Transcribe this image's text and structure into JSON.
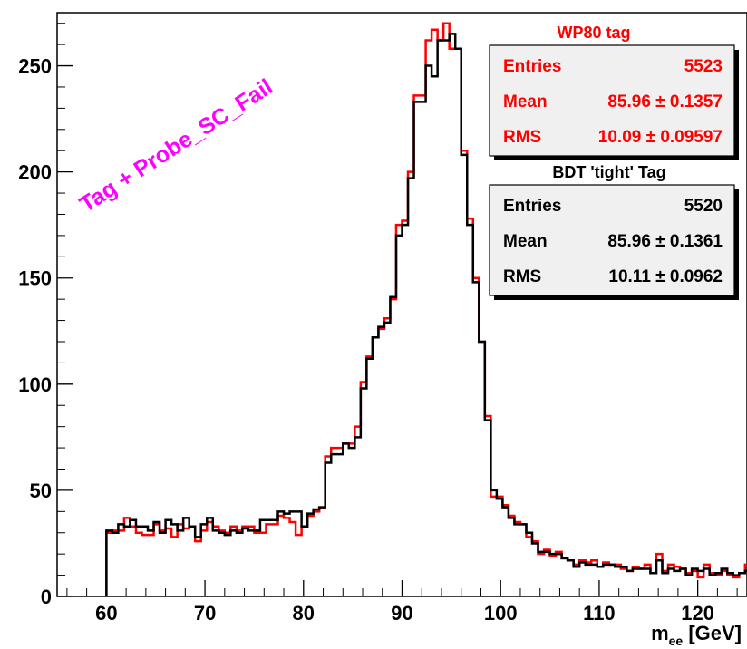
{
  "chart_data": {
    "type": "histogram",
    "xlabel_main": "m",
    "xlabel_sub": "ee",
    "xlabel_unit": " [GeV]",
    "xlim": [
      55,
      125
    ],
    "ylim": [
      0,
      275
    ],
    "x_ticks": [
      60,
      70,
      80,
      90,
      100,
      110,
      120
    ],
    "y_ticks": [
      0,
      50,
      100,
      150,
      200,
      250
    ],
    "bin_edges_start": 60,
    "bin_width": 0.6,
    "annotation": "Tag + Probe_SC_Fail",
    "colors": {
      "series_red": "#ff0000",
      "series_black": "#000000",
      "annotation": "#ff00ff"
    },
    "series": [
      {
        "name": "WP80 tag",
        "color": "#ff0000",
        "stats": {
          "entries_label": "Entries",
          "entries": "5523",
          "mean_label": "Mean",
          "mean": "85.96 ± 0.1357",
          "rms_label": "RMS",
          "rms": "10.09 ± 0.09597"
        },
        "values": [
          30,
          31,
          31,
          37,
          33,
          30,
          29,
          29,
          34,
          31,
          32,
          28,
          34,
          32,
          33,
          26,
          31,
          35,
          33,
          31,
          30,
          33,
          31,
          33,
          33,
          30,
          30,
          34,
          34,
          38,
          37,
          35,
          29,
          33,
          38,
          40,
          42,
          66,
          70,
          70,
          72,
          72,
          80,
          101,
          113,
          122,
          126,
          131,
          140,
          175,
          177,
          200,
          236,
          236,
          262,
          267,
          262,
          270,
          258,
          258,
          210,
          178,
          150,
          120,
          85,
          47,
          47,
          43,
          38,
          35,
          34,
          28,
          26,
          20,
          22,
          19,
          21,
          18,
          17,
          15,
          17,
          16,
          17,
          14,
          16,
          15,
          15,
          13,
          12,
          14,
          13,
          15,
          11,
          20,
          12,
          15,
          14,
          13,
          11,
          12,
          9,
          15,
          11,
          10,
          12,
          10,
          9,
          11,
          15,
          11,
          9,
          8,
          12,
          10,
          8,
          10,
          7,
          5
        ]
      },
      {
        "name": "BDT 'tight' Tag",
        "color": "#000000",
        "stats": {
          "entries_label": "Entries",
          "entries": "5520",
          "mean_label": "Mean",
          "mean": "85.96 ± 0.1361",
          "rms_label": "RMS",
          "rms": "10.11 ± 0.0962"
        },
        "values": [
          31,
          30,
          34,
          33,
          36,
          33,
          33,
          31,
          35,
          30,
          36,
          34,
          31,
          37,
          33,
          28,
          34,
          37,
          31,
          30,
          29,
          31,
          30,
          32,
          31,
          31,
          36,
          36,
          36,
          40,
          39,
          40,
          40,
          33,
          39,
          41,
          42,
          63,
          67,
          67,
          72,
          70,
          75,
          98,
          112,
          122,
          127,
          129,
          141,
          170,
          175,
          197,
          233,
          233,
          250,
          245,
          262,
          262,
          265,
          258,
          208,
          175,
          148,
          120,
          83,
          50,
          46,
          42,
          37,
          34,
          34,
          30,
          25,
          21,
          21,
          20,
          20,
          18,
          17,
          14,
          16,
          15,
          15,
          14,
          15,
          15,
          14,
          14,
          12,
          13,
          13,
          13,
          11,
          17,
          11,
          13,
          12,
          13,
          10,
          13,
          12,
          13,
          10,
          11,
          13,
          11,
          10,
          11,
          12,
          11,
          9,
          9,
          13,
          10,
          9,
          9,
          7,
          6
        ]
      }
    ]
  }
}
